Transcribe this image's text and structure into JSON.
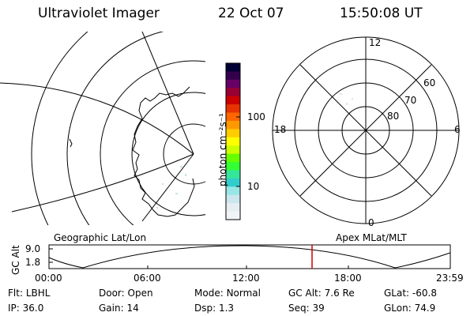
{
  "header": {
    "title": "Ultraviolet Imager",
    "date": "22 Oct 07",
    "time": "15:50:08 UT"
  },
  "colorbar": {
    "unit_label": "photon cm⁻²s⁻¹",
    "ticks": [
      "100",
      "10"
    ],
    "colors": [
      "#000033",
      "#33004d",
      "#660066",
      "#990033",
      "#cc0000",
      "#e63300",
      "#ff6600",
      "#ff9900",
      "#ffcc00",
      "#ffff00",
      "#ccff00",
      "#66ff00",
      "#33ff33",
      "#33e699",
      "#33cccc",
      "#99e6e6",
      "#cce6ee",
      "#e6eef2",
      "#f0f4f6"
    ]
  },
  "polar": {
    "lat_labels": [
      "80",
      "70",
      "60"
    ],
    "mlt_labels": {
      "top": "12",
      "right": "6",
      "bottom": "0",
      "left": "18"
    }
  },
  "timeline": {
    "left_label": "Geographic Lat/Lon",
    "right_label": "Apex MLat/MLT",
    "y_axis_label": "GC Alt",
    "y_ticks": [
      "9.0",
      "1.8"
    ],
    "x_ticks": [
      "00:00",
      "06:00",
      "12:00",
      "18:00",
      "23:59"
    ],
    "current_time_marker_color": "#cc0000"
  },
  "info": {
    "row1": [
      {
        "key": "Flt:",
        "value": "LBHL"
      },
      {
        "key": "Door:",
        "value": "Open"
      },
      {
        "key": "Mode:",
        "value": "Normal"
      },
      {
        "key": "GC Alt:",
        "value": "7.6 Re"
      },
      {
        "key": "GLat:",
        "value": "-60.8"
      }
    ],
    "row2": [
      {
        "key": "IP:",
        "value": "36.0"
      },
      {
        "key": "Gain:",
        "value": "14"
      },
      {
        "key": "Dsp:",
        "value": "1.3"
      },
      {
        "key": "Seq:",
        "value": "39"
      },
      {
        "key": "GLon:",
        "value": "74.9"
      }
    ]
  }
}
